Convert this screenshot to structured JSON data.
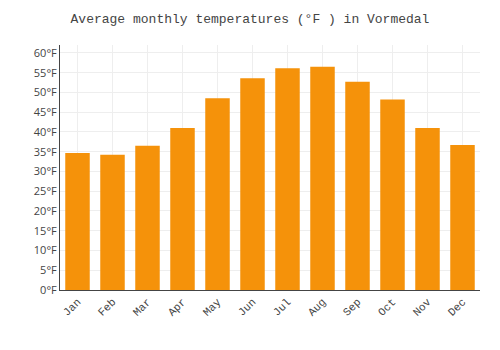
{
  "chart_data": {
    "type": "bar",
    "title": "Average monthly temperatures (°F ) in Vormedal",
    "categories": [
      "Jan",
      "Feb",
      "Mar",
      "Apr",
      "May",
      "Jun",
      "Jul",
      "Aug",
      "Sep",
      "Oct",
      "Nov",
      "Dec"
    ],
    "values": [
      34.7,
      34.2,
      36.5,
      41.0,
      48.5,
      53.6,
      56.1,
      56.5,
      52.7,
      48.2,
      41.0,
      36.7
    ],
    "color": "#F5920A",
    "ylim": [
      0,
      62
    ],
    "yticks": [
      {
        "value": 0,
        "label": "0°F"
      },
      {
        "value": 5,
        "label": "5°F"
      },
      {
        "value": 10,
        "label": "10°F"
      },
      {
        "value": 15,
        "label": "15°F"
      },
      {
        "value": 20,
        "label": "20°F"
      },
      {
        "value": 25,
        "label": "25°F"
      },
      {
        "value": 30,
        "label": "30°F"
      },
      {
        "value": 35,
        "label": "35°F"
      },
      {
        "value": 40,
        "label": "40°F"
      },
      {
        "value": 45,
        "label": "45°F"
      },
      {
        "value": 50,
        "label": "50°F"
      },
      {
        "value": 55,
        "label": "55°F"
      },
      {
        "value": 60,
        "label": "60°F"
      }
    ],
    "grid": true
  }
}
